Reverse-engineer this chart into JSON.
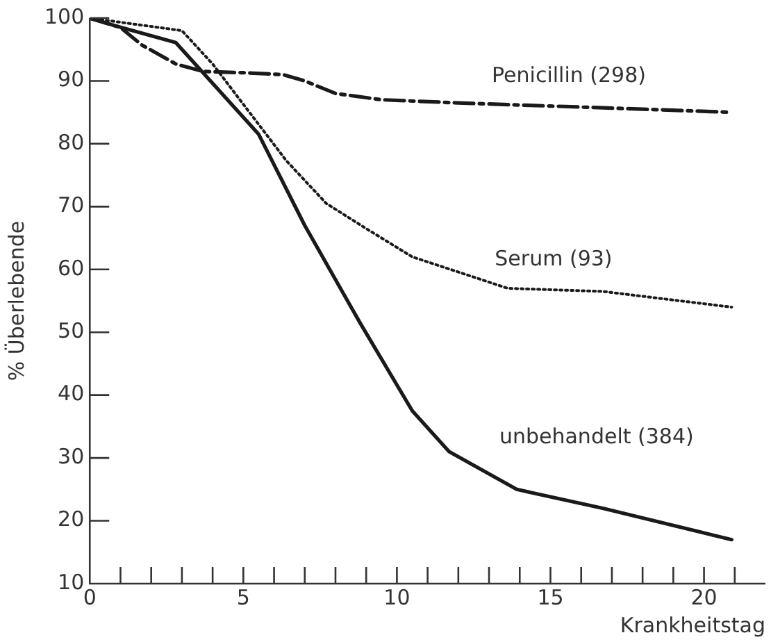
{
  "chart_data": {
    "type": "line",
    "xlabel": "Krankheitstag",
    "ylabel": "% Überlebende",
    "xlim": [
      0,
      22
    ],
    "ylim": [
      10,
      100
    ],
    "xticks": [
      0,
      {
        "value": 1,
        "label": null
      },
      {
        "value": 2,
        "label": null
      },
      {
        "value": 3,
        "label": null
      },
      {
        "value": 4,
        "label": null
      },
      5,
      {
        "value": 6,
        "label": null
      },
      {
        "value": 7,
        "label": null
      },
      {
        "value": 8,
        "label": null
      },
      {
        "value": 9,
        "label": null
      },
      10,
      {
        "value": 11,
        "label": null
      },
      {
        "value": 12,
        "label": null
      },
      {
        "value": 13,
        "label": null
      },
      {
        "value": 14,
        "label": null
      },
      15,
      {
        "value": 16,
        "label": null
      },
      {
        "value": 17,
        "label": null
      },
      {
        "value": 18,
        "label": null
      },
      {
        "value": 19,
        "label": null
      },
      20,
      {
        "value": 21,
        "label": null
      }
    ],
    "yticks": [
      10,
      20,
      30,
      40,
      50,
      60,
      70,
      80,
      90,
      100
    ],
    "grid": false,
    "legend": false,
    "marker": "none",
    "series": [
      {
        "name": "Penicillin (298)",
        "color": "#1a1a1a",
        "line_style": "dashed",
        "x": [
          0,
          1,
          1.7,
          2.8,
          3.7,
          5,
          6.3,
          7,
          8,
          9.5,
          12,
          15,
          18,
          20.9
        ],
        "values": [
          100,
          98.5,
          95.7,
          92.7,
          91.5,
          91.3,
          91,
          90,
          88,
          87,
          86.5,
          86,
          85.5,
          85
        ]
      },
      {
        "name": "Serum (93)",
        "color": "#1a1a1a",
        "line_style": "dotted",
        "x": [
          0,
          1.5,
          3,
          4,
          5.2,
          6.4,
          7.7,
          9,
          10.5,
          12.8,
          13.6,
          16.7,
          20.9
        ],
        "values": [
          100,
          99,
          98,
          92.7,
          85,
          77.3,
          70.5,
          66.5,
          62,
          58.3,
          57,
          56.5,
          54
        ]
      },
      {
        "name": "unbehandelt (384)",
        "color": "#1a1a1a",
        "line_style": "solid",
        "x": [
          0,
          0.8,
          2.8,
          5.5,
          7,
          8.8,
          10.5,
          11.7,
          13.9,
          16.7,
          20.9
        ],
        "values": [
          100,
          98.8,
          96.1,
          81.5,
          67,
          51.5,
          37.5,
          31,
          25,
          22,
          17
        ]
      }
    ]
  }
}
